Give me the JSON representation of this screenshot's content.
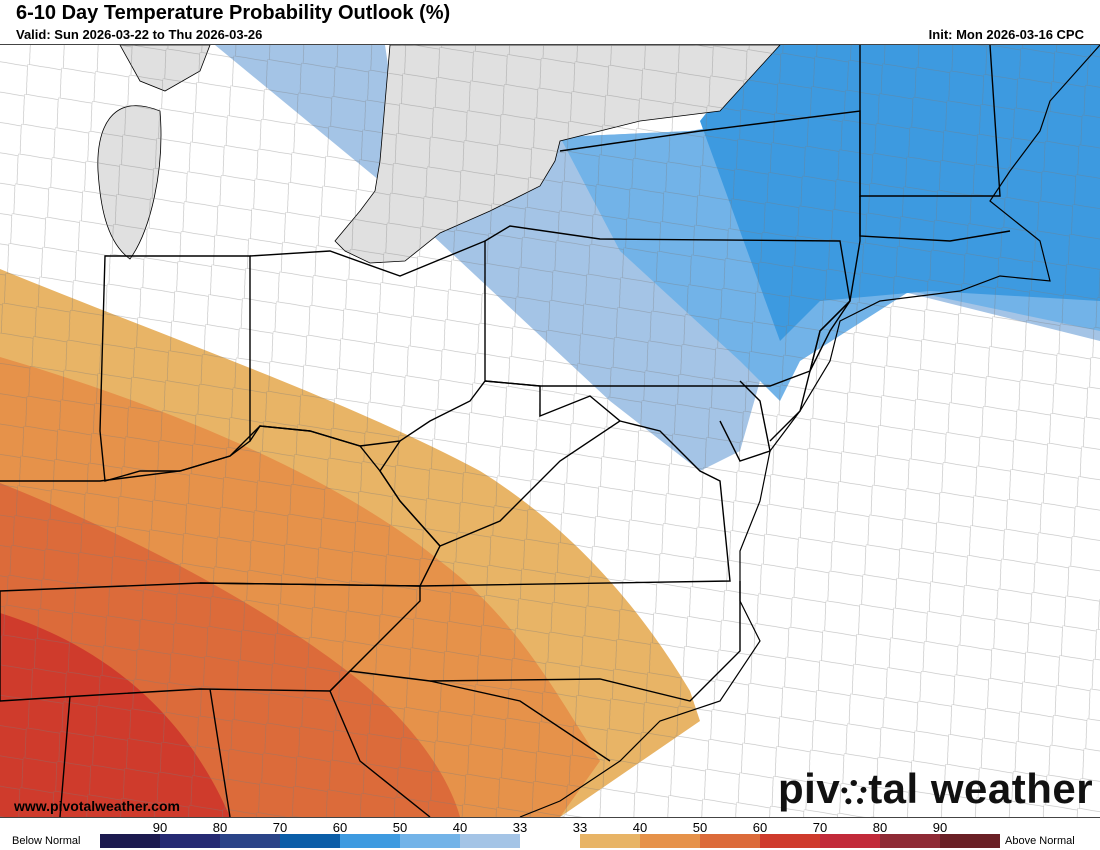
{
  "header": {
    "title": "6-10 Day Temperature Probability Outlook (%)",
    "valid": "Valid: Sun 2026-03-22 to Thu 2026-03-26",
    "init": "Init: Mon 2026-03-16 CPC"
  },
  "footer": {
    "website": "www.pivotalweather.com",
    "logo_text": "pivotal weather"
  },
  "legend": {
    "below_label": "Below Normal",
    "above_label": "Above Normal",
    "below_ticks": [
      "90",
      "80",
      "70",
      "60",
      "50",
      "40",
      "33"
    ],
    "above_ticks": [
      "33",
      "40",
      "50",
      "60",
      "70",
      "80",
      "90"
    ],
    "below_colors": [
      "#1c1a4f",
      "#262a73",
      "#2a4488",
      "#0b5ea8",
      "#3d9ae0",
      "#72b3e8",
      "#a4c4e6"
    ],
    "neutral_color": "#ffffff",
    "above_colors": [
      "#e8b466",
      "#e6924a",
      "#dc6b3a",
      "#cf3b2c",
      "#c22a3a",
      "#8f2a35",
      "#6a2026"
    ]
  },
  "map": {
    "colors": {
      "water": "#e0e0e0",
      "land": "#ffffff",
      "state_border": "#000000",
      "county_border": "#7a7a7a"
    }
  }
}
